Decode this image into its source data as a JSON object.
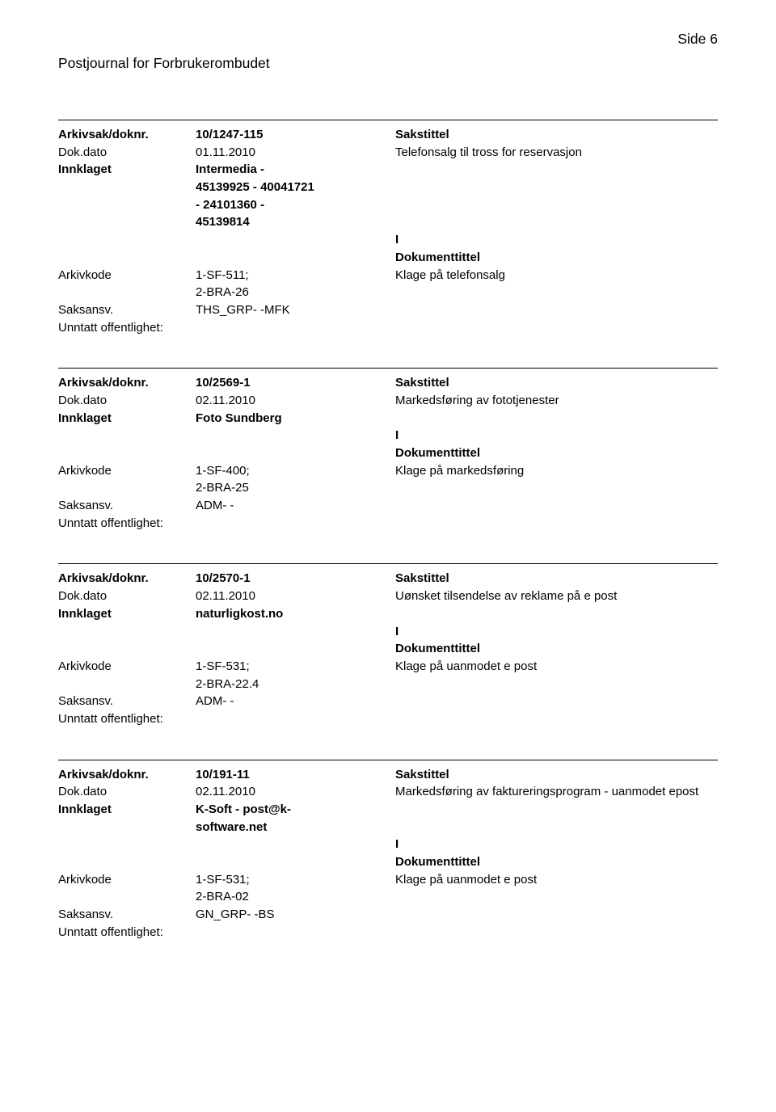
{
  "page_header": {
    "title": "Postjournal for Forbrukerombudet",
    "page_label": "Side 6"
  },
  "labels": {
    "arkivsak": "Arkivsak/doknr.",
    "dokdato": "Dok.dato",
    "innklaget": "Innklaget",
    "arkivkode": "Arkivkode",
    "saksansv": "Saksansv.",
    "unntatt": "Unntatt offentlighet:",
    "sakstittel": "Sakstittel",
    "dokumenttittel": "Dokumenttittel"
  },
  "entries": [
    {
      "arkivsak": "10/1247-115",
      "dokdato": "01.11.2010",
      "sakstittel_text": "Telefonsalg til tross for reservasjon",
      "innklaget_lines": [
        "Intermedia -",
        "45139925 - 40041721",
        "- 24101360 -",
        "45139814"
      ],
      "io": "I",
      "arkivkode_lines": [
        "1-SF-511;",
        "2-BRA-26"
      ],
      "doktittel_text": "Klage på telefonsalg",
      "saksansv": "THS_GRP- -MFK"
    },
    {
      "arkivsak": "10/2569-1",
      "dokdato": "02.11.2010",
      "sakstittel_text": "Markedsføring av fototjenester",
      "innklaget_lines": [
        "Foto Sundberg"
      ],
      "io": "I",
      "arkivkode_lines": [
        "1-SF-400;",
        "2-BRA-25"
      ],
      "doktittel_text": "Klage på markedsføring",
      "saksansv": "ADM- -"
    },
    {
      "arkivsak": "10/2570-1",
      "dokdato": "02.11.2010",
      "sakstittel_text": "Uønsket tilsendelse av reklame på e post",
      "innklaget_lines": [
        "naturligkost.no"
      ],
      "io": "I",
      "arkivkode_lines": [
        "1-SF-531;",
        "2-BRA-22.4"
      ],
      "doktittel_text": "Klage på uanmodet e post",
      "saksansv": "ADM- -"
    },
    {
      "arkivsak": "10/191-11",
      "dokdato": "02.11.2010",
      "sakstittel_text": "Markedsføring av faktureringsprogram - uanmodet epost",
      "innklaget_lines": [
        "K-Soft - post@k-",
        "software.net"
      ],
      "io": "I",
      "arkivkode_lines": [
        "1-SF-531;",
        "2-BRA-02"
      ],
      "doktittel_text": "Klage på uanmodet e post",
      "saksansv": "GN_GRP- -BS"
    }
  ]
}
